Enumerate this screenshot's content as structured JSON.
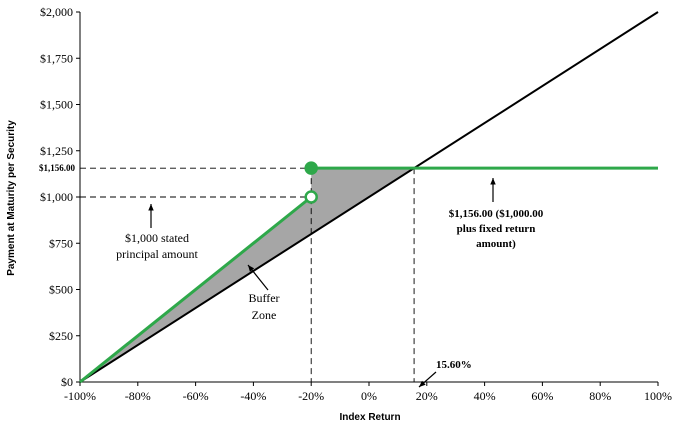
{
  "chart_data": {
    "type": "line",
    "xlabel": "Index Return",
    "ylabel": "Payment at Maturity per Security",
    "xlim": [
      -100,
      100
    ],
    "ylim": [
      0,
      2000
    ],
    "x_ticks": [
      -100,
      -80,
      -60,
      -40,
      -20,
      0,
      20,
      40,
      60,
      80,
      100
    ],
    "x_tick_labels": [
      "-100%",
      "-80%",
      "-60%",
      "-40%",
      "-20%",
      "0%",
      "20%",
      "40%",
      "60%",
      "80%",
      "100%"
    ],
    "y_ticks": [
      0,
      250,
      500,
      750,
      1000,
      1250,
      1500,
      1750,
      2000
    ],
    "y_tick_labels": [
      "$0",
      "$250",
      "$500",
      "$750",
      "$1,000",
      "$1,250",
      "$1,500",
      "$1,750",
      "$2,000"
    ],
    "extra_y_tick": {
      "value": 1156,
      "label": "$1,156.00"
    },
    "series": [
      {
        "role": "index",
        "color": "#000000",
        "x": [
          -100,
          100
        ],
        "y": [
          0,
          2000
        ]
      },
      {
        "role": "security-lower",
        "color": "#2ea84a",
        "x": [
          -100,
          -20
        ],
        "y": [
          0,
          1000
        ]
      },
      {
        "role": "security-upper",
        "color": "#2ea84a",
        "x": [
          -20,
          100
        ],
        "y": [
          1156,
          1156
        ]
      }
    ],
    "buffer_zone": {
      "color": "#a6a6a6",
      "points": [
        [
          -100,
          0
        ],
        [
          -20,
          1000
        ],
        [
          -20,
          1156
        ],
        [
          15.6,
          1156
        ],
        [
          -20,
          800
        ]
      ]
    },
    "markers": [
      {
        "x": -20,
        "y": 1156,
        "filled": true
      },
      {
        "x": -20,
        "y": 1000,
        "filled": false
      }
    ],
    "guides": [
      {
        "from": [
          -100,
          1156
        ],
        "to": [
          -20,
          1156
        ]
      },
      {
        "from": [
          -100,
          1000
        ],
        "to": [
          -20,
          1000
        ]
      },
      {
        "from": [
          -20,
          1156
        ],
        "to": [
          -20,
          0
        ]
      },
      {
        "from": [
          15.6,
          1156
        ],
        "to": [
          15.6,
          0
        ]
      }
    ],
    "annotations": {
      "principal": [
        "$1,000 stated",
        "principal amount"
      ],
      "buffer": [
        "Buffer",
        "Zone"
      ],
      "fixed": [
        "$1,156.00 ($1,000.00",
        "plus fixed return",
        "amount)"
      ],
      "breakeven": "15.60%"
    }
  }
}
